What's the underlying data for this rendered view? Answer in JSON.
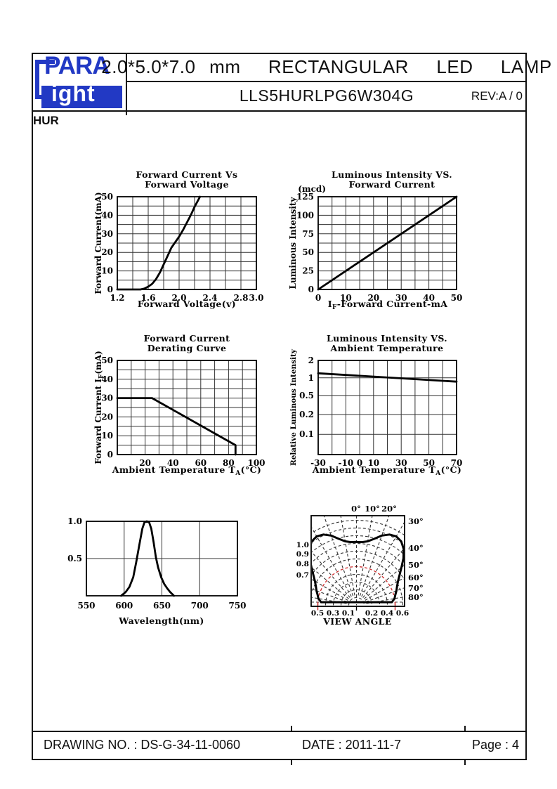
{
  "header": {
    "logo": {
      "line1": "PARA",
      "line2": "ight"
    },
    "title": "2.0*5.0*7.0 mm  RECTANGULAR  LED  LAMP",
    "part_number": "LLS5HURLPG6W304G",
    "revision": "REV:A / 0"
  },
  "section_label": "HUR",
  "footer": {
    "drawing_no": "DRAWING NO. : DS-G-34-11-0060",
    "date": "DATE : 2011-11-7",
    "page": "Page : 4"
  },
  "colors": {
    "logo_blue": "#2239c4",
    "grid": "#333333",
    "curve": "#000000",
    "red_arc": "#cc2b2b",
    "border": "#111111"
  },
  "chart_data": [
    {
      "id": "forward-current-vs-forward-voltage",
      "type": "line",
      "title": [
        "Forward Current Vs",
        "Forward Voltage"
      ],
      "xlabel": [
        {
          "t": "Forward Voltage(v)"
        }
      ],
      "ylabel": [
        {
          "t": "Forward Current(mA)"
        }
      ],
      "x_range": [
        1.2,
        3.0
      ],
      "y_range": [
        0,
        50
      ],
      "x_grid_step": 0.2,
      "y_grid_step": 5,
      "x_ticks": [
        "1.2",
        "1.6",
        "2.0",
        "2.4",
        "2.8",
        "3.0"
      ],
      "y_ticks": [
        "0",
        "10",
        "20",
        "30",
        "40",
        "50"
      ],
      "points": [
        [
          1.2,
          0
        ],
        [
          1.5,
          0
        ],
        [
          1.55,
          0.5
        ],
        [
          1.6,
          1.5
        ],
        [
          1.65,
          3
        ],
        [
          1.7,
          5.5
        ],
        [
          1.75,
          9
        ],
        [
          1.8,
          13.5
        ],
        [
          1.85,
          18
        ],
        [
          1.9,
          22.5
        ],
        [
          1.95,
          25.5
        ],
        [
          2.0,
          28.5
        ],
        [
          2.05,
          32
        ],
        [
          2.1,
          36
        ],
        [
          2.15,
          40
        ],
        [
          2.2,
          44.5
        ],
        [
          2.27,
          50
        ]
      ]
    },
    {
      "id": "luminous-intensity-vs-forward-current",
      "type": "line",
      "title": [
        "Luminous Intensity VS.",
        "Forward Current"
      ],
      "unit_label": "(mcd)",
      "xlabel": [
        {
          "t": "I"
        },
        {
          "t": "F",
          "sub": true
        },
        {
          "t": "-Forward Current-mA"
        }
      ],
      "ylabel": [
        {
          "t": "Luminous Intensity"
        }
      ],
      "x_range": [
        0,
        50
      ],
      "y_range": [
        0,
        125
      ],
      "x_grid_step": 5,
      "y_grid_step": 12.5,
      "x_ticks": [
        "0",
        "10",
        "20",
        "30",
        "40",
        "50"
      ],
      "y_ticks": [
        "0",
        "25",
        "50",
        "75",
        "100",
        "125"
      ],
      "points": [
        [
          0,
          0
        ],
        [
          50,
          125
        ]
      ]
    },
    {
      "id": "forward-current-derating-curve",
      "type": "line",
      "title": [
        "Forward Current",
        "Derating Curve"
      ],
      "xlabel": [
        {
          "t": "Ambient Temperature T"
        },
        {
          "t": "A",
          "sub": true
        },
        {
          "t": "(°C)"
        }
      ],
      "ylabel": [
        {
          "t": "Forward Current I"
        },
        {
          "t": "F",
          "sub": true
        },
        {
          "t": "(mA)"
        }
      ],
      "x_range": [
        0,
        100
      ],
      "y_range": [
        0,
        50
      ],
      "x_grid_step": 10,
      "y_grid_step": 5,
      "x_ticks": [
        "20",
        "40",
        "60",
        "80",
        "100"
      ],
      "y_ticks": [
        "0",
        "10",
        "20",
        "30",
        "40",
        "50"
      ],
      "points": [
        [
          0,
          30
        ],
        [
          25,
          30
        ],
        [
          85,
          5
        ],
        [
          85,
          0
        ]
      ]
    },
    {
      "id": "luminous-intensity-vs-ambient-temperature",
      "type": "line",
      "title": [
        "Luminous Intensity VS.",
        "Ambient Temperature"
      ],
      "xlabel": [
        {
          "t": "Ambient Temperature T"
        },
        {
          "t": "A",
          "sub": true
        },
        {
          "t": "(°C)"
        }
      ],
      "ylabel": [
        {
          "t": "Relative Luminous Intensity"
        }
      ],
      "x_range": [
        -30,
        70
      ],
      "x_grid_step": 10,
      "x_ticks": [
        "-30",
        "-10",
        "0",
        "10",
        "30",
        "50",
        "70"
      ],
      "y_ticks": [
        "2",
        "1",
        "0.5",
        "0.2",
        "0.1"
      ],
      "y_scale": "log",
      "points": [
        [
          -30,
          1.2
        ],
        [
          70,
          0.86
        ]
      ]
    },
    {
      "id": "spectral-distribution",
      "type": "area",
      "title": [],
      "xlabel": [
        {
          "t": "Wavelength(nm)"
        }
      ],
      "x_range": [
        550,
        750
      ],
      "y_range": [
        0,
        1
      ],
      "x_ticks": [
        "550",
        "600",
        "650",
        "700",
        "750"
      ],
      "y_ticks": [
        "1.0",
        "0.5"
      ],
      "x_gridlines": [
        600,
        650,
        700
      ],
      "y_gridlines": [
        0.5
      ],
      "peak_nm": 630,
      "points": [
        [
          596,
          0
        ],
        [
          602,
          0.05
        ],
        [
          607,
          0.12
        ],
        [
          612,
          0.25
        ],
        [
          616,
          0.45
        ],
        [
          620,
          0.68
        ],
        [
          624,
          0.9
        ],
        [
          627,
          0.99
        ],
        [
          630,
          1.0
        ],
        [
          633,
          0.99
        ],
        [
          636,
          0.9
        ],
        [
          639,
          0.72
        ],
        [
          642,
          0.52
        ],
        [
          645,
          0.38
        ],
        [
          649,
          0.25
        ],
        [
          653,
          0.16
        ],
        [
          657,
          0.1
        ],
        [
          661,
          0.05
        ],
        [
          666,
          0
        ]
      ]
    },
    {
      "id": "view-angle",
      "type": "polar",
      "xlabel": "VIEW ANGLE",
      "top_angle_labels": [
        "0°",
        "10°",
        "20°"
      ],
      "right_angle_labels": [
        "30°",
        "40°",
        "50°",
        "60°",
        "70°",
        "80°"
      ],
      "left_radial_labels": [
        "1.0",
        "0.9",
        "0.8",
        "0.7"
      ],
      "bottom_radial_labels": [
        "0.5",
        "0.3",
        "0.1",
        "0.2",
        "0.4",
        "0.6"
      ],
      "grid_arcs": [
        0.1,
        0.2,
        0.3,
        0.4,
        0.6,
        0.7,
        0.8,
        0.9,
        1.0,
        1.1
      ],
      "red_arc": 0.5,
      "spoke_angles_deg": [
        10,
        20,
        30,
        40,
        50,
        60,
        70,
        80
      ],
      "pattern": [
        [
          0,
          0.82
        ],
        [
          5,
          0.82
        ],
        [
          10,
          0.84
        ],
        [
          15,
          0.89
        ],
        [
          20,
          0.96
        ],
        [
          25,
          1.01
        ],
        [
          30,
          1.03
        ],
        [
          35,
          1.01
        ],
        [
          40,
          0.95
        ],
        [
          45,
          0.86
        ],
        [
          50,
          0.76
        ],
        [
          55,
          0.68
        ],
        [
          60,
          0.62
        ],
        [
          65,
          0.58
        ],
        [
          70,
          0.55
        ],
        [
          75,
          0.52
        ],
        [
          80,
          0.5
        ],
        [
          85,
          0.46
        ]
      ]
    }
  ]
}
